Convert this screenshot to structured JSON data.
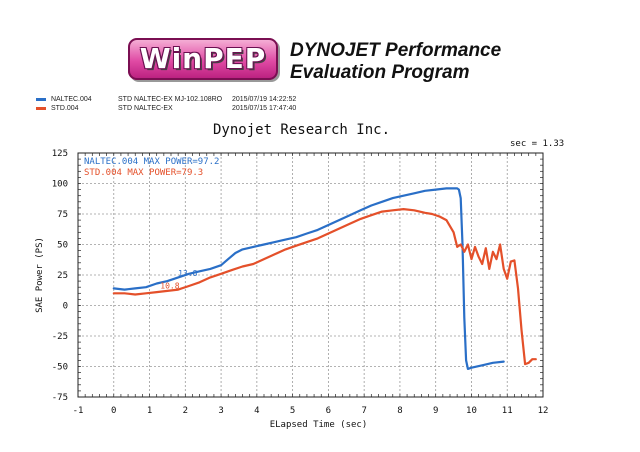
{
  "header": {
    "logo_text": "WinPEP",
    "program_line1": "DYNOJET Performance",
    "program_line2": "Evaluation Program"
  },
  "runs": [
    {
      "file": "NALTEC.004",
      "spec": "STD NALTEC-EX MJ-102.108RO",
      "date": "2015/07/19 14:22:52",
      "color": "#2a6fc7"
    },
    {
      "file": "STD.004",
      "spec": "STD NALTEC-EX",
      "date": "2015/07/15 17:47:40",
      "color": "#e4502a"
    }
  ],
  "company": "Dynojet  Research  Inc.",
  "sec_label": "sec = 1.33",
  "chart_data": {
    "type": "line",
    "title": "Dynojet  Research  Inc.",
    "xlabel": "ELapsed Time (sec)",
    "ylabel": "SAE Power (PS)",
    "xlim": [
      -1,
      12
    ],
    "ylim": [
      -75,
      125
    ],
    "xticks": [
      -1,
      0,
      1,
      2,
      3,
      4,
      5,
      6,
      7,
      8,
      9,
      10,
      11,
      12
    ],
    "yticks": [
      -75,
      -50,
      -25,
      0,
      25,
      50,
      75,
      100,
      125
    ],
    "legend": [
      "NALTEC.004  MAX POWER=97.2",
      "STD.004  MAX POWER=79.3"
    ],
    "annotations": [
      {
        "text": "13.8",
        "series": "NALTEC.004",
        "x": 1.8,
        "y": 24
      },
      {
        "text": "10.8",
        "series": "STD.004",
        "x": 1.3,
        "y": 14
      }
    ],
    "series": [
      {
        "name": "NALTEC.004",
        "color": "#2a6fc7",
        "x": [
          0,
          0.3,
          0.6,
          0.9,
          1.2,
          1.5,
          1.8,
          2.1,
          2.4,
          2.7,
          3.0,
          3.2,
          3.4,
          3.6,
          3.9,
          4.2,
          4.5,
          4.8,
          5.1,
          5.4,
          5.7,
          6.0,
          6.3,
          6.6,
          6.9,
          7.2,
          7.5,
          7.8,
          8.1,
          8.4,
          8.7,
          9.0,
          9.3,
          9.6,
          9.65,
          9.7,
          9.75,
          9.8,
          9.85,
          9.9,
          10.0,
          10.3,
          10.6,
          10.9
        ],
        "values": [
          14,
          13,
          14,
          15,
          18,
          20,
          23,
          26,
          28,
          30,
          33,
          38,
          43,
          46,
          48,
          50,
          52,
          54,
          56,
          59,
          62,
          66,
          70,
          74,
          78,
          82,
          85,
          88,
          90,
          92,
          94,
          95,
          96,
          96,
          95,
          88,
          50,
          -10,
          -45,
          -52,
          -51,
          -49,
          -47,
          -46
        ]
      },
      {
        "name": "STD.004",
        "color": "#e4502a",
        "x": [
          0,
          0.3,
          0.6,
          0.9,
          1.2,
          1.5,
          1.8,
          2.1,
          2.4,
          2.7,
          3.0,
          3.3,
          3.6,
          3.9,
          4.2,
          4.5,
          4.8,
          5.1,
          5.4,
          5.7,
          6.0,
          6.3,
          6.6,
          6.9,
          7.2,
          7.5,
          7.8,
          8.1,
          8.4,
          8.7,
          8.9,
          9.1,
          9.3,
          9.5,
          9.6,
          9.7,
          9.8,
          9.9,
          10.0,
          10.1,
          10.2,
          10.3,
          10.4,
          10.5,
          10.6,
          10.7,
          10.8,
          10.9,
          11.0,
          11.1,
          11.2,
          11.3,
          11.4,
          11.5,
          11.6,
          11.7,
          11.8
        ],
        "values": [
          10,
          10,
          9,
          10,
          11,
          12,
          13,
          16,
          19,
          23,
          26,
          29,
          32,
          34,
          38,
          42,
          46,
          49,
          52,
          55,
          59,
          63,
          67,
          71,
          74,
          77,
          78,
          79,
          78,
          76,
          75,
          73,
          70,
          60,
          48,
          50,
          44,
          50,
          38,
          48,
          40,
          34,
          47,
          30,
          44,
          38,
          50,
          30,
          22,
          36,
          37,
          14,
          -20,
          -48,
          -47,
          -44,
          -44
        ]
      }
    ]
  }
}
